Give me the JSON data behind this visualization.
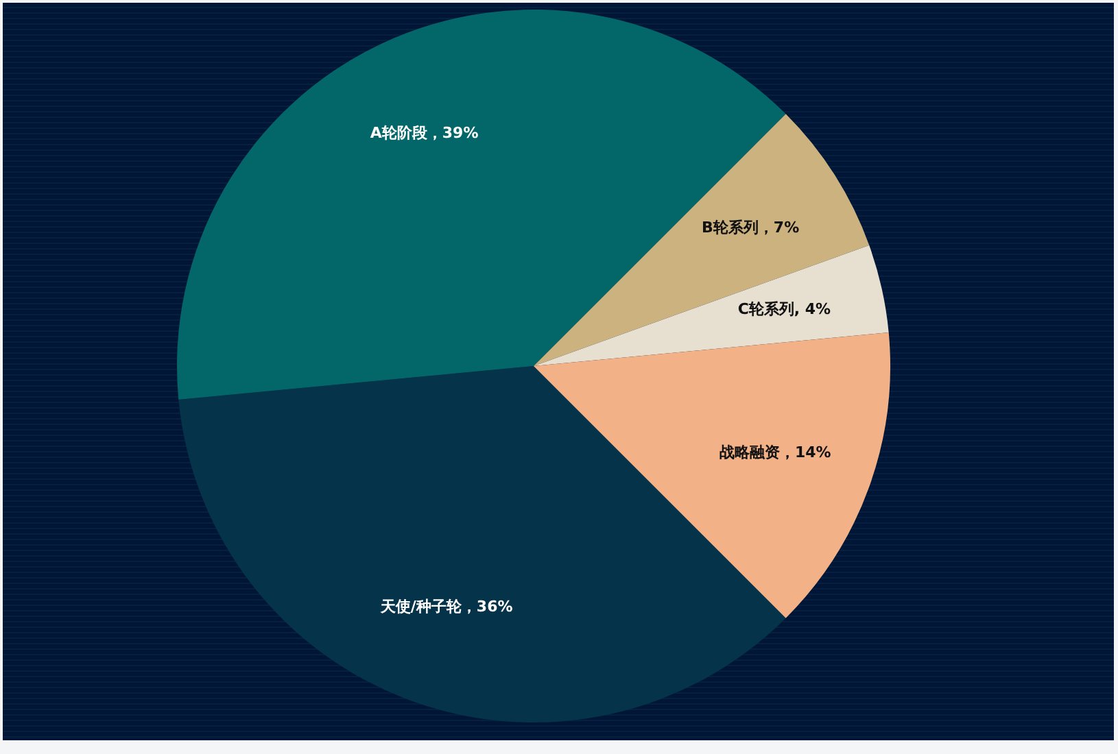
{
  "chart_data": {
    "type": "pie",
    "categories": [
      "天使/种子轮",
      "A轮阶段",
      "B轮系列",
      "C轮系列",
      "战略融资"
    ],
    "values": [
      36,
      39,
      7,
      4,
      14
    ],
    "colors": [
      "#04334a",
      "#036769",
      "#cbb27f",
      "#e7dfcf",
      "#f2b186"
    ],
    "value_labels": [
      "，36%",
      "，39%",
      "，7%",
      ", 4%",
      "，14%"
    ],
    "legend": false
  }
}
